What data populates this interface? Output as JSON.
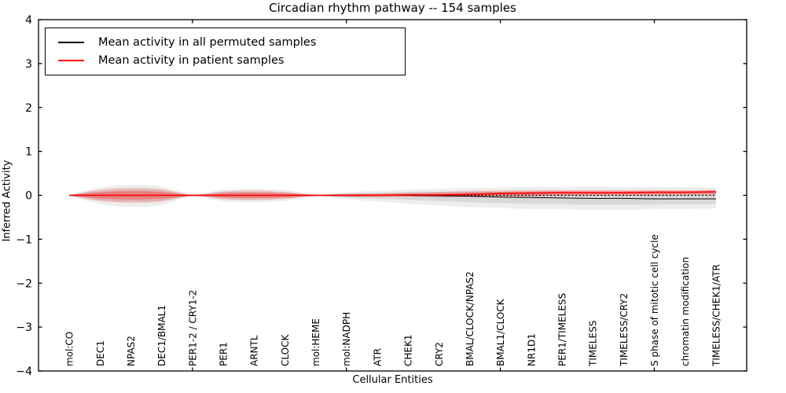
{
  "figure": {
    "title": "Circadian rhythm pathway -- 154 samples",
    "xlabel": "Cellular Entities",
    "ylabel": "Inferred Activity"
  },
  "legend": {
    "items": [
      {
        "label": "Mean activity in all permuted samples",
        "color": "#000000"
      },
      {
        "label": "Mean activity in patient samples",
        "color": "#ff0000"
      }
    ]
  },
  "chart_data": {
    "type": "line",
    "title": "Circadian rhythm pathway -- 154 samples",
    "xlabel": "Cellular Entities",
    "ylabel": "Inferred Activity",
    "ylim": [
      -4,
      4
    ],
    "xlim": [
      0,
      23
    ],
    "grid": false,
    "legend_position": "upper left",
    "ytick_values": [
      4,
      3,
      2,
      1,
      0,
      -1,
      -2,
      -3,
      -4
    ],
    "ytick_labels": [
      "4",
      "3",
      "2",
      "1",
      "0",
      "−1",
      "−2",
      "−3",
      "−4"
    ],
    "xtick_values": [
      5,
      10,
      15,
      20
    ],
    "categories": [
      "mol:CO",
      "DEC1",
      "NPAS2",
      "DEC1/BMAL1",
      "PER1-2 / CRY1-2",
      "PER1",
      "ARNTL",
      "CLOCK",
      "mol:HEME",
      "mol:NADPH",
      "ATR",
      "CHEK1",
      "CRY2",
      "BMAL/CLOCK/NPAS2",
      "BMAL1/CLOCK",
      "NR1D1",
      "PER1/TIMELESS",
      "TIMELESS",
      "TIMELESS/CRY2",
      "S phase of mitotic cell cycle",
      "chromatin modification",
      "TIMELESS/CHEK1/ATR"
    ],
    "zero_line": {
      "y": 0,
      "style": "dotted",
      "color": "#000000"
    },
    "band_inner_scale": 0.55,
    "series": [
      {
        "name": "Mean activity in all permuted samples",
        "color": "#000000",
        "line_width": 1,
        "band_color": "rgba(90,90,90,0.10)",
        "band_inner_color": "rgba(90,90,90,0.14)",
        "values": [
          0,
          0,
          0,
          0,
          0,
          0,
          0,
          0,
          0,
          0,
          0,
          0,
          -0.01,
          -0.02,
          -0.04,
          -0.05,
          -0.06,
          -0.07,
          -0.07,
          -0.08,
          -0.08,
          -0.08
        ],
        "band_upper": [
          0.01,
          0.18,
          0.24,
          0.2,
          0.02,
          0.13,
          0.15,
          0.12,
          0.02,
          0.07,
          0.1,
          0.13,
          0.15,
          0.17,
          0.18,
          0.19,
          0.19,
          0.2,
          0.19,
          0.19,
          0.19,
          0.18
        ],
        "band_lower": [
          -0.01,
          -0.2,
          -0.26,
          -0.22,
          -0.02,
          -0.14,
          -0.16,
          -0.13,
          -0.02,
          -0.09,
          -0.14,
          -0.19,
          -0.23,
          -0.27,
          -0.29,
          -0.31,
          -0.32,
          -0.33,
          -0.33,
          -0.32,
          -0.31,
          -0.3
        ]
      },
      {
        "name": "Mean activity in patient samples",
        "color": "#ff0000",
        "line_width": 1.5,
        "band_color": "rgba(255,0,0,0.18)",
        "band_inner_color": "rgba(255,0,0,0.28)",
        "values": [
          0,
          0,
          0,
          0,
          0,
          0,
          0,
          0,
          0,
          0,
          0,
          0.01,
          0.01,
          0.02,
          0.04,
          0.05,
          0.06,
          0.06,
          0.06,
          0.07,
          0.07,
          0.08
        ],
        "band_upper": [
          0.01,
          0.13,
          0.17,
          0.14,
          0.02,
          0.09,
          0.11,
          0.08,
          0.02,
          0.04,
          0.05,
          0.06,
          0.08,
          0.1,
          0.11,
          0.12,
          0.12,
          0.12,
          0.12,
          0.12,
          0.12,
          0.13
        ],
        "band_lower": [
          -0.01,
          -0.13,
          -0.17,
          -0.14,
          -0.02,
          -0.09,
          -0.11,
          -0.08,
          -0.02,
          -0.04,
          -0.04,
          -0.04,
          -0.05,
          -0.05,
          -0.04,
          -0.03,
          -0.02,
          -0.01,
          -0.01,
          -0.01,
          0.0,
          0.0
        ]
      }
    ]
  }
}
